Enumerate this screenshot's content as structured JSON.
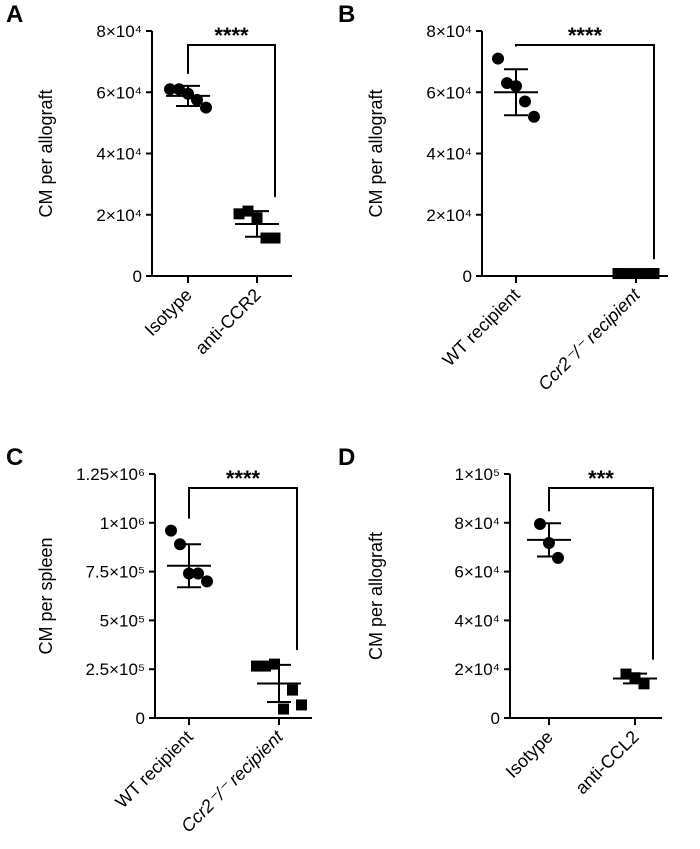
{
  "chart_data": [
    {
      "type": "dot",
      "panel": "A",
      "ylabel": "CM per allograft",
      "categories": [
        "Isotype",
        "anti-CCR2"
      ],
      "markers": [
        "circle",
        "square"
      ],
      "points": [
        [
          61000,
          61000,
          59500,
          57500,
          55000
        ],
        [
          20300,
          21200,
          19000,
          12400,
          12400
        ]
      ],
      "means": [
        58800,
        17000
      ],
      "sds": [
        3300,
        4200
      ],
      "annotation": "****",
      "color": "#000000",
      "ylim": [
        0,
        80000
      ],
      "yticks": [
        0,
        {
          "value": 20000,
          "label": "2×10⁴"
        },
        {
          "value": 40000,
          "label": "4×10⁴"
        },
        {
          "value": 60000,
          "label": "6×10⁴"
        },
        {
          "value": 80000,
          "label": "8×10⁴"
        }
      ]
    },
    {
      "type": "dot",
      "panel": "B",
      "ylabel": "CM per allograft",
      "categories": [
        "WT recipient",
        "Ccr2⁻/⁻ recipient"
      ],
      "markers": [
        "circle",
        "square"
      ],
      "points": [
        [
          71000,
          63000,
          62000,
          57000,
          52000
        ],
        [
          800,
          800,
          800,
          800,
          800
        ]
      ],
      "means": [
        60000,
        800
      ],
      "sds": [
        7500,
        100
      ],
      "annotation": "****",
      "color": "#000000",
      "ylim": [
        0,
        80000
      ],
      "yticks": [
        0,
        {
          "value": 20000,
          "label": "2×10⁴"
        },
        {
          "value": 40000,
          "label": "4×10⁴"
        },
        {
          "value": 60000,
          "label": "6×10⁴"
        },
        {
          "value": 80000,
          "label": "8×10⁴"
        }
      ]
    },
    {
      "type": "dot",
      "panel": "C",
      "ylabel": "CM per spleen",
      "categories": [
        "WT recipient",
        "Ccr2⁻/⁻ recipient"
      ],
      "markers": [
        "circle",
        "square"
      ],
      "points": [
        [
          960000,
          890000,
          740000,
          740000,
          700000
        ],
        [
          266000,
          266000,
          276000,
          46000,
          143000,
          67000
        ]
      ],
      "means": [
        780000,
        177000
      ],
      "sds": [
        110000,
        95000
      ],
      "annotation": "****",
      "color": "#000000",
      "ylim": [
        0,
        1250000
      ],
      "yticks": [
        0,
        {
          "value": 250000,
          "label": "2.5×10⁵"
        },
        {
          "value": 500000,
          "label": "5×10⁵"
        },
        {
          "value": 750000,
          "label": "7.5×10⁵"
        },
        {
          "value": 1000000,
          "label": "1×10⁶"
        },
        {
          "value": 1250000,
          "label": "1.25×10⁶"
        }
      ]
    },
    {
      "type": "dot",
      "panel": "D",
      "ylabel": "CM per allograft",
      "categories": [
        "Isotype",
        "anti-CCL2"
      ],
      "markers": [
        "circle",
        "square"
      ],
      "points": [
        [
          79500,
          71700,
          65600
        ],
        [
          18000,
          16500,
          14000
        ]
      ],
      "means": [
        73000,
        16200
      ],
      "sds": [
        6800,
        2000
      ],
      "annotation": "***",
      "color": "#000000",
      "ylim": [
        0,
        100000
      ],
      "yticks": [
        0,
        {
          "value": 20000,
          "label": "2×10⁴"
        },
        {
          "value": 40000,
          "label": "4×10⁴"
        },
        {
          "value": 60000,
          "label": "6×10⁴"
        },
        {
          "value": 80000,
          "label": "8×10⁴"
        },
        {
          "value": 100000,
          "label": "1×10⁵"
        }
      ]
    }
  ]
}
